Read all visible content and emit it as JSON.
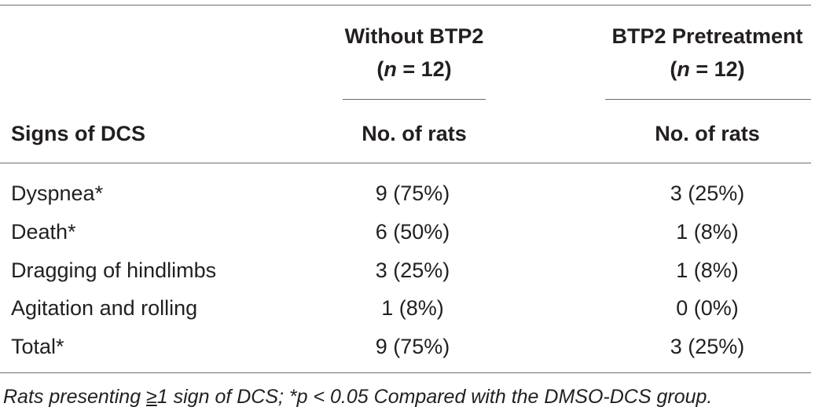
{
  "table": {
    "columns": [
      {
        "title": "Without BTP2",
        "n_label": "n",
        "n_value": " = 12)",
        "sub_header": "No. of rats"
      },
      {
        "title": "BTP2 Pretreatment",
        "n_label": "n",
        "n_value": " = 12)",
        "sub_header": "No. of rats"
      }
    ],
    "row_header": "Signs of DCS",
    "rows": [
      {
        "sign": "Dyspnea*",
        "without": "9 (75%)",
        "with": "3 (25%)"
      },
      {
        "sign": "Death*",
        "without": "6 (50%)",
        "with": "1 (8%)"
      },
      {
        "sign": "Dragging of hindlimbs",
        "without": "3 (25%)",
        "with": "1 (8%)"
      },
      {
        "sign": "Agitation and rolling",
        "without": "1 (8%)",
        "with": "0 (0%)"
      },
      {
        "sign": "Total*",
        "without": "9 (75%)",
        "with": "3 (25%)"
      }
    ]
  },
  "footnote": {
    "pre": "Rats presenting ",
    "symbol": "≥",
    "post": "1 sign of DCS; *p < 0.05 Compared with the DMSO-DCS group."
  }
}
